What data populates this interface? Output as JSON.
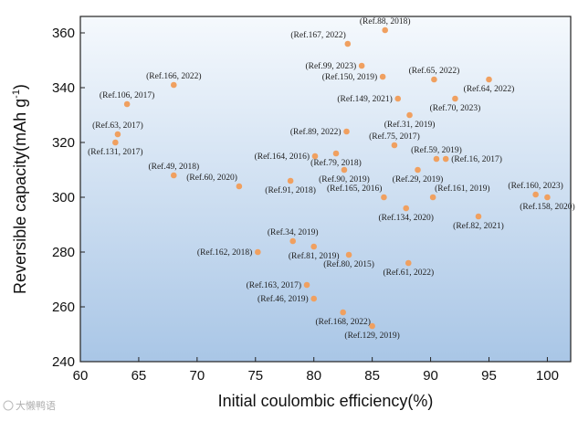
{
  "chart_data": {
    "type": "scatter",
    "xlabel": "Initial coulombic efficiency(%)",
    "ylabel_main": "Reversible capacity(mAh g",
    "ylabel_sup": "-1",
    "ylabel_end": ")",
    "xlim": [
      60,
      102
    ],
    "ylim": [
      240,
      366
    ],
    "xticks": [
      60,
      65,
      70,
      75,
      80,
      85,
      90,
      95,
      100
    ],
    "yticks": [
      240,
      260,
      280,
      300,
      320,
      340,
      360
    ],
    "marker_color": "#f0a060",
    "background_top": "#f5f9fd",
    "background_bottom": "#a9c6e6",
    "points": [
      {
        "label": "(Ref.88, 2018)",
        "x": 86.1,
        "y": 361,
        "anchor": "middle",
        "lpos": "above"
      },
      {
        "label": "(Ref.167, 2022)",
        "x": 82.9,
        "y": 356,
        "anchor": "end",
        "lpos": "above-left"
      },
      {
        "label": "(Ref.99, 2023)",
        "x": 84.1,
        "y": 348,
        "anchor": "end",
        "lpos": "left"
      },
      {
        "label": "(Ref.150, 2019)",
        "x": 85.9,
        "y": 344,
        "anchor": "end",
        "lpos": "left"
      },
      {
        "label": "(Ref.65, 2022)",
        "x": 90.3,
        "y": 343,
        "anchor": "middle",
        "lpos": "above"
      },
      {
        "label": "(Ref.64, 2022)",
        "x": 95.0,
        "y": 343,
        "anchor": "middle",
        "lpos": "below"
      },
      {
        "label": "(Ref.166, 2022)",
        "x": 68.0,
        "y": 341,
        "anchor": "middle",
        "lpos": "above"
      },
      {
        "label": "(Ref.149, 2021)",
        "x": 87.2,
        "y": 336,
        "anchor": "end",
        "lpos": "left"
      },
      {
        "label": "(Ref.70, 2023)",
        "x": 92.1,
        "y": 336,
        "anchor": "middle",
        "lpos": "below"
      },
      {
        "label": "(Ref.106, 2017)",
        "x": 64.0,
        "y": 334,
        "anchor": "middle",
        "lpos": "above"
      },
      {
        "label": "(Ref.31, 2019)",
        "x": 88.2,
        "y": 330,
        "anchor": "middle",
        "lpos": "below"
      },
      {
        "label": "(Ref.89, 2022)",
        "x": 82.8,
        "y": 324,
        "anchor": "end",
        "lpos": "left"
      },
      {
        "label": "(Ref.63, 2017)",
        "x": 63.2,
        "y": 323,
        "anchor": "middle",
        "lpos": "above"
      },
      {
        "label": "(Ref.131, 2017)",
        "x": 63.0,
        "y": 320,
        "anchor": "middle",
        "lpos": "below"
      },
      {
        "label": "(Ref.75, 2017)",
        "x": 86.9,
        "y": 319,
        "anchor": "middle",
        "lpos": "above"
      },
      {
        "label": "(Ref.59, 2019)",
        "x": 90.5,
        "y": 314,
        "anchor": "middle",
        "lpos": "above"
      },
      {
        "label": "(Ref.16, 2017)",
        "x": 91.3,
        "y": 314,
        "anchor": "start",
        "lpos": "right"
      },
      {
        "label": "(Ref.164, 2016)",
        "x": 80.1,
        "y": 315,
        "anchor": "end",
        "lpos": "left"
      },
      {
        "label": "(Ref.79, 2018)",
        "x": 81.9,
        "y": 316,
        "anchor": "middle",
        "lpos": "below"
      },
      {
        "label": "(Ref.29, 2019)",
        "x": 88.9,
        "y": 310,
        "anchor": "middle",
        "lpos": "below"
      },
      {
        "label": "(Ref.90, 2019)",
        "x": 82.6,
        "y": 310,
        "anchor": "middle",
        "lpos": "below"
      },
      {
        "label": "(Ref.49, 2018)",
        "x": 68.0,
        "y": 308,
        "anchor": "middle",
        "lpos": "above"
      },
      {
        "label": "(Ref.60, 2020)",
        "x": 73.6,
        "y": 304,
        "anchor": "end",
        "lpos": "above-left"
      },
      {
        "label": "(Ref.91, 2018)",
        "x": 78.0,
        "y": 306,
        "anchor": "middle",
        "lpos": "below"
      },
      {
        "label": "(Ref.165, 2016)",
        "x": 86.0,
        "y": 300,
        "anchor": "end",
        "lpos": "above-left"
      },
      {
        "label": "(Ref.161, 2019)",
        "x": 90.2,
        "y": 300,
        "anchor": "start",
        "lpos": "above-right"
      },
      {
        "label": "(Ref.160, 2023)",
        "x": 99.0,
        "y": 301,
        "anchor": "middle",
        "lpos": "above"
      },
      {
        "label": "(Ref.158, 2020)",
        "x": 100.0,
        "y": 300,
        "anchor": "middle",
        "lpos": "below"
      },
      {
        "label": "(Ref.134, 2020)",
        "x": 87.9,
        "y": 296,
        "anchor": "middle",
        "lpos": "below"
      },
      {
        "label": "(Ref.82, 2021)",
        "x": 94.1,
        "y": 293,
        "anchor": "middle",
        "lpos": "below"
      },
      {
        "label": "(Ref.34, 2019)",
        "x": 78.2,
        "y": 284,
        "anchor": "middle",
        "lpos": "above"
      },
      {
        "label": "(Ref.162, 2018)",
        "x": 75.2,
        "y": 280,
        "anchor": "end",
        "lpos": "left"
      },
      {
        "label": "(Ref.81, 2019)",
        "x": 80.0,
        "y": 282,
        "anchor": "middle",
        "lpos": "below"
      },
      {
        "label": "(Ref.80, 2015)",
        "x": 83.0,
        "y": 279,
        "anchor": "middle",
        "lpos": "below"
      },
      {
        "label": "(Ref.61, 2022)",
        "x": 88.1,
        "y": 276,
        "anchor": "middle",
        "lpos": "below"
      },
      {
        "label": "(Ref.163, 2017)",
        "x": 79.4,
        "y": 268,
        "anchor": "end",
        "lpos": "left"
      },
      {
        "label": "(Ref.46, 2019)",
        "x": 80.0,
        "y": 263,
        "anchor": "end",
        "lpos": "left"
      },
      {
        "label": "(Ref.168, 2022)",
        "x": 82.5,
        "y": 258,
        "anchor": "middle",
        "lpos": "below"
      },
      {
        "label": "(Ref.129, 2019)",
        "x": 85.0,
        "y": 253,
        "anchor": "middle",
        "lpos": "below"
      }
    ]
  },
  "watermark": {
    "text": "大懒鸭语"
  }
}
